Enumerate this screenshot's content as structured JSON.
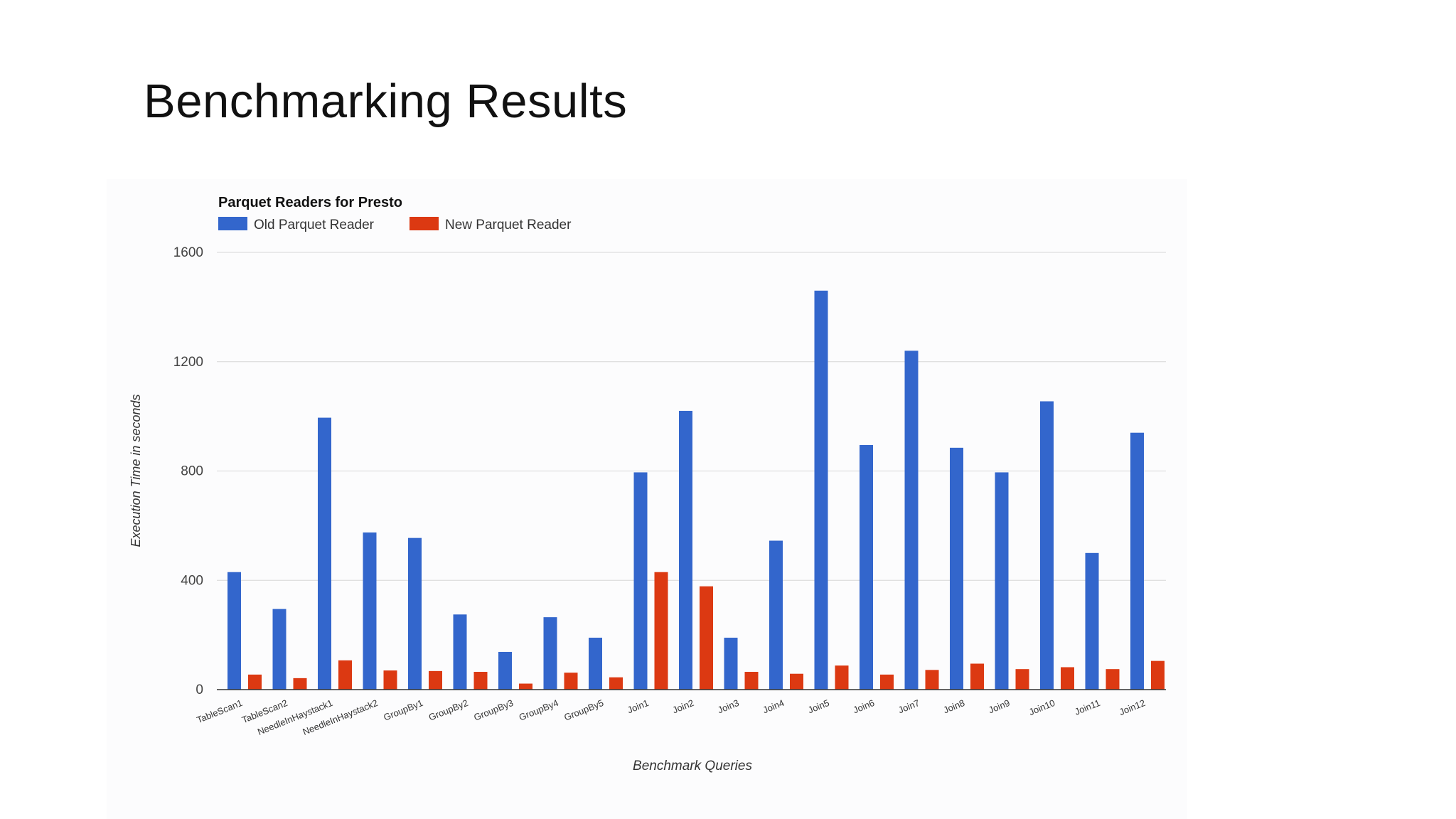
{
  "slide": {
    "title": "Benchmarking Results"
  },
  "chart_data": {
    "type": "bar",
    "title": "Parquet Readers for Presto",
    "xlabel": "Benchmark Queries",
    "ylabel": "Execution Time in seconds",
    "ylim": [
      0,
      1600
    ],
    "yticks": [
      0,
      400,
      800,
      1200,
      1600
    ],
    "grid": true,
    "legend_position": "top-left",
    "categories": [
      "TableScan1",
      "TableScan2",
      "NeedleInHaystack1",
      "NeedleInHaystack2",
      "GroupBy1",
      "GroupBy2",
      "GroupBy3",
      "GroupBy4",
      "GroupBy5",
      "Join1",
      "Join2",
      "Join3",
      "Join4",
      "Join5",
      "Join6",
      "Join7",
      "Join8",
      "Join9",
      "Join10",
      "Join11",
      "Join12"
    ],
    "series": [
      {
        "name": "Old Parquet Reader",
        "color": "#3366cc",
        "values": [
          430,
          295,
          995,
          575,
          555,
          275,
          138,
          265,
          190,
          795,
          1020,
          190,
          545,
          1460,
          895,
          1240,
          885,
          795,
          1055,
          500,
          940
        ]
      },
      {
        "name": "New Parquet Reader",
        "color": "#dc3912",
        "values": [
          55,
          42,
          107,
          70,
          68,
          65,
          22,
          62,
          45,
          430,
          378,
          65,
          58,
          88,
          55,
          72,
          95,
          75,
          82,
          75,
          105
        ]
      }
    ]
  }
}
